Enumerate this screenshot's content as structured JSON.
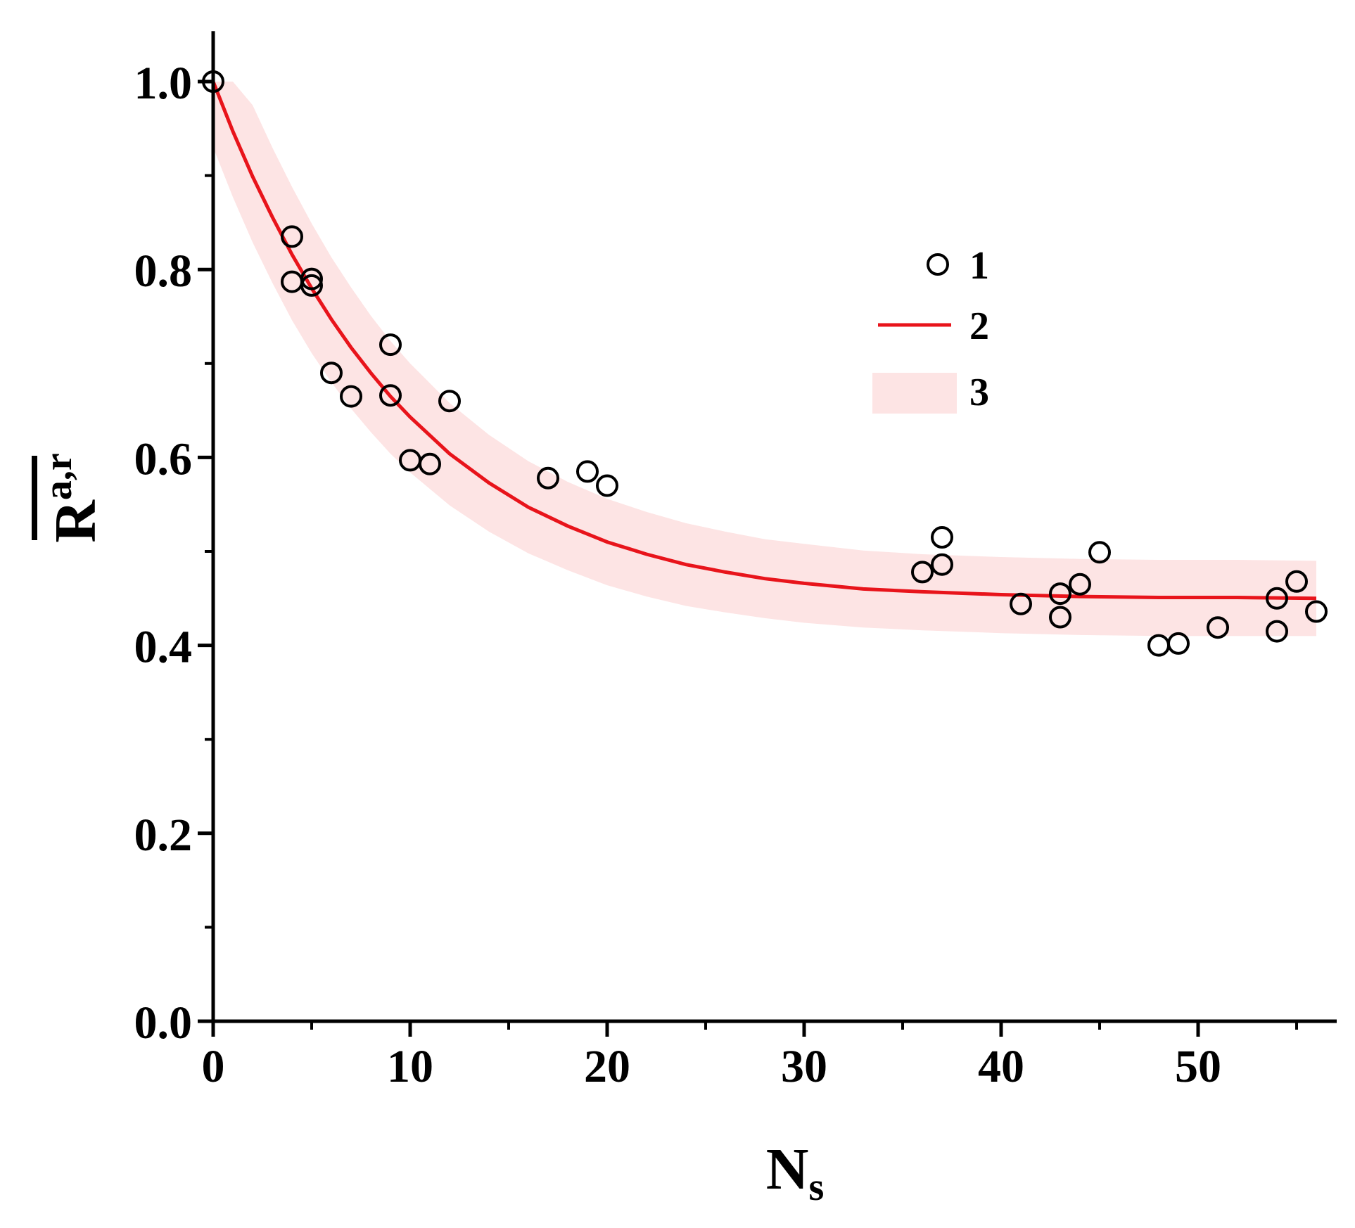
{
  "chart_data": {
    "type": "scatter",
    "xlabel": {
      "main": "N",
      "sub": "s"
    },
    "ylabel": {
      "main": "R",
      "sup": "a,r",
      "overbar": true
    },
    "xlim": [
      0,
      57
    ],
    "ylim": [
      0,
      1.05
    ],
    "xticks": [
      0,
      10,
      20,
      30,
      40,
      50
    ],
    "xtick_labels": [
      "0",
      "10",
      "20",
      "30",
      "40",
      "50"
    ],
    "xminor": [
      5,
      15,
      25,
      35,
      45,
      55
    ],
    "yticks": [
      0.0,
      0.2,
      0.4,
      0.6,
      0.8,
      1.0
    ],
    "ytick_labels": [
      "0.0",
      "0.2",
      "0.4",
      "0.6",
      "0.8",
      "1.0"
    ],
    "yminor": [
      0.1,
      0.3,
      0.5,
      0.7,
      0.9
    ],
    "grid": false,
    "legend_position": "right",
    "colors": {
      "fit_line": "#e8141b",
      "band": "#fde4e4",
      "points": "#000000"
    },
    "series": [
      {
        "name": "1",
        "kind": "points",
        "x": [
          0,
          4,
          4,
          5,
          5,
          6,
          7,
          9,
          9,
          10,
          11,
          12,
          17,
          19,
          20,
          36,
          37,
          37,
          41,
          43,
          43,
          44,
          45,
          48,
          49,
          51,
          54,
          54,
          55,
          56
        ],
        "y": [
          1.0,
          0.835,
          0.787,
          0.79,
          0.783,
          0.69,
          0.665,
          0.72,
          0.666,
          0.597,
          0.593,
          0.66,
          0.578,
          0.585,
          0.57,
          0.478,
          0.515,
          0.486,
          0.444,
          0.455,
          0.43,
          0.465,
          0.499,
          0.4,
          0.402,
          0.419,
          0.45,
          0.415,
          0.468,
          0.436
        ]
      },
      {
        "name": "2",
        "kind": "line",
        "x": [
          0,
          1,
          2,
          3,
          4,
          5,
          6,
          7,
          8,
          9,
          10,
          12,
          14,
          16,
          18,
          20,
          22,
          24,
          26,
          28,
          30,
          33,
          36,
          40,
          44,
          48,
          52,
          56
        ],
        "y": [
          1.0,
          0.947,
          0.899,
          0.856,
          0.816,
          0.78,
          0.747,
          0.717,
          0.69,
          0.665,
          0.643,
          0.604,
          0.573,
          0.547,
          0.527,
          0.51,
          0.497,
          0.486,
          0.478,
          0.471,
          0.466,
          0.46,
          0.457,
          0.454,
          0.452,
          0.451,
          0.451,
          0.45
        ]
      },
      {
        "name": "3",
        "kind": "band",
        "x": [
          0,
          1,
          2,
          3,
          4,
          5,
          6,
          7,
          8,
          9,
          10,
          12,
          14,
          16,
          18,
          20,
          22,
          24,
          26,
          28,
          30,
          33,
          36,
          40,
          44,
          48,
          52,
          56
        ],
        "upper": [
          1.0,
          1.0,
          0.975,
          0.93,
          0.888,
          0.849,
          0.813,
          0.781,
          0.751,
          0.724,
          0.7,
          0.658,
          0.624,
          0.596,
          0.574,
          0.556,
          0.542,
          0.53,
          0.521,
          0.513,
          0.508,
          0.501,
          0.497,
          0.494,
          0.492,
          0.491,
          0.491,
          0.49
        ],
        "lower": [
          0.93,
          0.877,
          0.829,
          0.786,
          0.746,
          0.711,
          0.68,
          0.652,
          0.627,
          0.604,
          0.584,
          0.549,
          0.521,
          0.498,
          0.48,
          0.464,
          0.452,
          0.442,
          0.435,
          0.429,
          0.424,
          0.419,
          0.416,
          0.413,
          0.411,
          0.41,
          0.41,
          0.41
        ]
      }
    ]
  }
}
